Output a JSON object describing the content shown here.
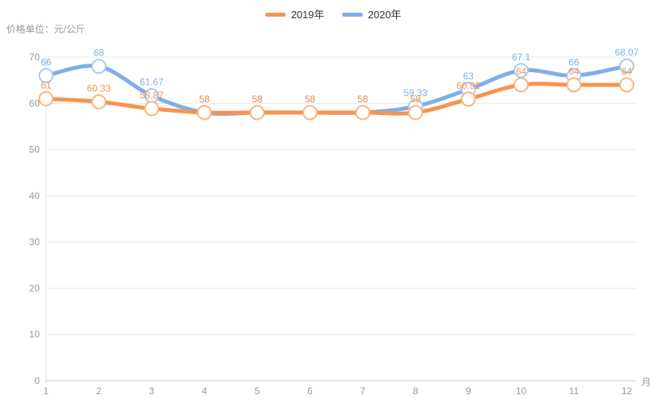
{
  "axes": {
    "y_title": "价格单位：元/公斤",
    "x_unit": "月",
    "y_ticks": [
      0,
      10,
      20,
      30,
      40,
      50,
      60,
      70
    ],
    "x_ticks": [
      "1",
      "2",
      "3",
      "4",
      "5",
      "6",
      "7",
      "8",
      "9",
      "10",
      "11",
      "12"
    ]
  },
  "chart_data": {
    "type": "line",
    "smooth": true,
    "title": "",
    "xlabel": "月",
    "ylabel": "价格单位：元/公斤",
    "x": [
      1,
      2,
      3,
      4,
      5,
      6,
      7,
      8,
      9,
      10,
      11,
      12
    ],
    "ylim": [
      0,
      70
    ],
    "grid": true,
    "legend_position": "top",
    "series": [
      {
        "name": "2019年",
        "color": "#F7944D",
        "marker_stroke": "#F8B57F",
        "values": [
          61,
          60.33,
          58.87,
          58,
          58,
          58,
          58,
          58,
          60.92,
          64,
          64,
          64
        ],
        "labels": [
          "61",
          "60.33",
          "58.87",
          "58",
          "58",
          "58",
          "58",
          "58",
          "60.92",
          "64",
          "64",
          "64"
        ]
      },
      {
        "name": "2020年",
        "color": "#7FAEE9",
        "marker_stroke": "#A9C9F1",
        "values": [
          66,
          68,
          61.67,
          58,
          58,
          58,
          58,
          59.33,
          63,
          67.1,
          66,
          68.07
        ],
        "labels": [
          "66",
          "68",
          "61.67",
          "58",
          "58",
          "58",
          "58",
          "59.33",
          "63",
          "67.1",
          "66",
          "68.07"
        ]
      }
    ]
  },
  "colors": {
    "grid_line": "#E8E8E8",
    "x_axis_line": "#CBCBCB",
    "y_axis_line": "#E2E2E2",
    "tick_text": "#999999",
    "marker_fill": "#FFFFFF"
  }
}
